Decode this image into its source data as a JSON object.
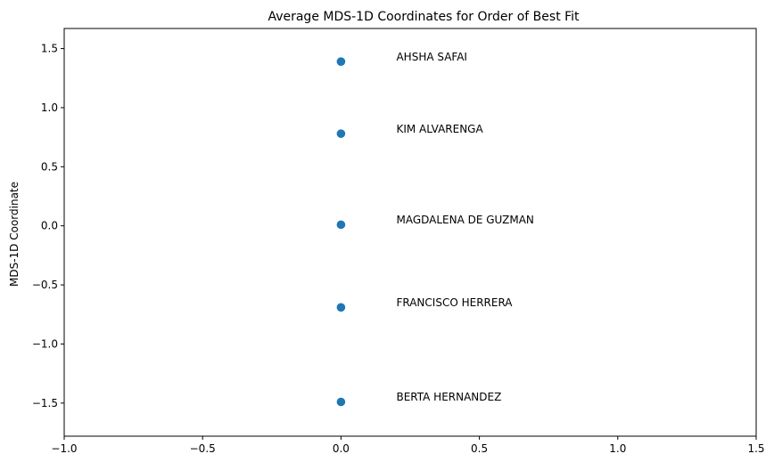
{
  "chart_data": {
    "type": "scatter",
    "title": "Average MDS-1D Coordinates for Order of Best Fit",
    "xlabel": "",
    "ylabel": "MDS-1D Coordinate",
    "xlim": [
      -1.0,
      1.5
    ],
    "ylim": [
      -1.78,
      1.67
    ],
    "xticks": [
      -1.0,
      -0.5,
      0.0,
      0.5,
      1.0,
      1.5
    ],
    "xtick_labels": [
      "−1.0",
      "−0.5",
      "0.0",
      "0.5",
      "1.0",
      "1.5"
    ],
    "yticks": [
      1.5,
      1.0,
      0.5,
      0.0,
      -0.5,
      -1.0,
      -1.5
    ],
    "ytick_labels": [
      "1.5",
      "1.0",
      "0.5",
      "0.0",
      "−0.5",
      "−1.0",
      "−1.5"
    ],
    "grid": false,
    "marker_color": "#1f77b4",
    "points": [
      {
        "x": 0.0,
        "y": 1.39,
        "label": "AHSHA SAFAI",
        "label_x": 0.2,
        "label_y": 1.43
      },
      {
        "x": 0.0,
        "y": 0.78,
        "label": "KIM ALVARENGA",
        "label_x": 0.2,
        "label_y": 0.82
      },
      {
        "x": 0.0,
        "y": 0.01,
        "label": "MAGDALENA DE GUZMAN",
        "label_x": 0.2,
        "label_y": 0.05
      },
      {
        "x": 0.0,
        "y": -0.69,
        "label": "FRANCISCO HERRERA",
        "label_x": 0.2,
        "label_y": -0.65
      },
      {
        "x": 0.0,
        "y": -1.49,
        "label": "BERTA HERNANDEZ",
        "label_x": 0.2,
        "label_y": -1.45
      }
    ]
  }
}
